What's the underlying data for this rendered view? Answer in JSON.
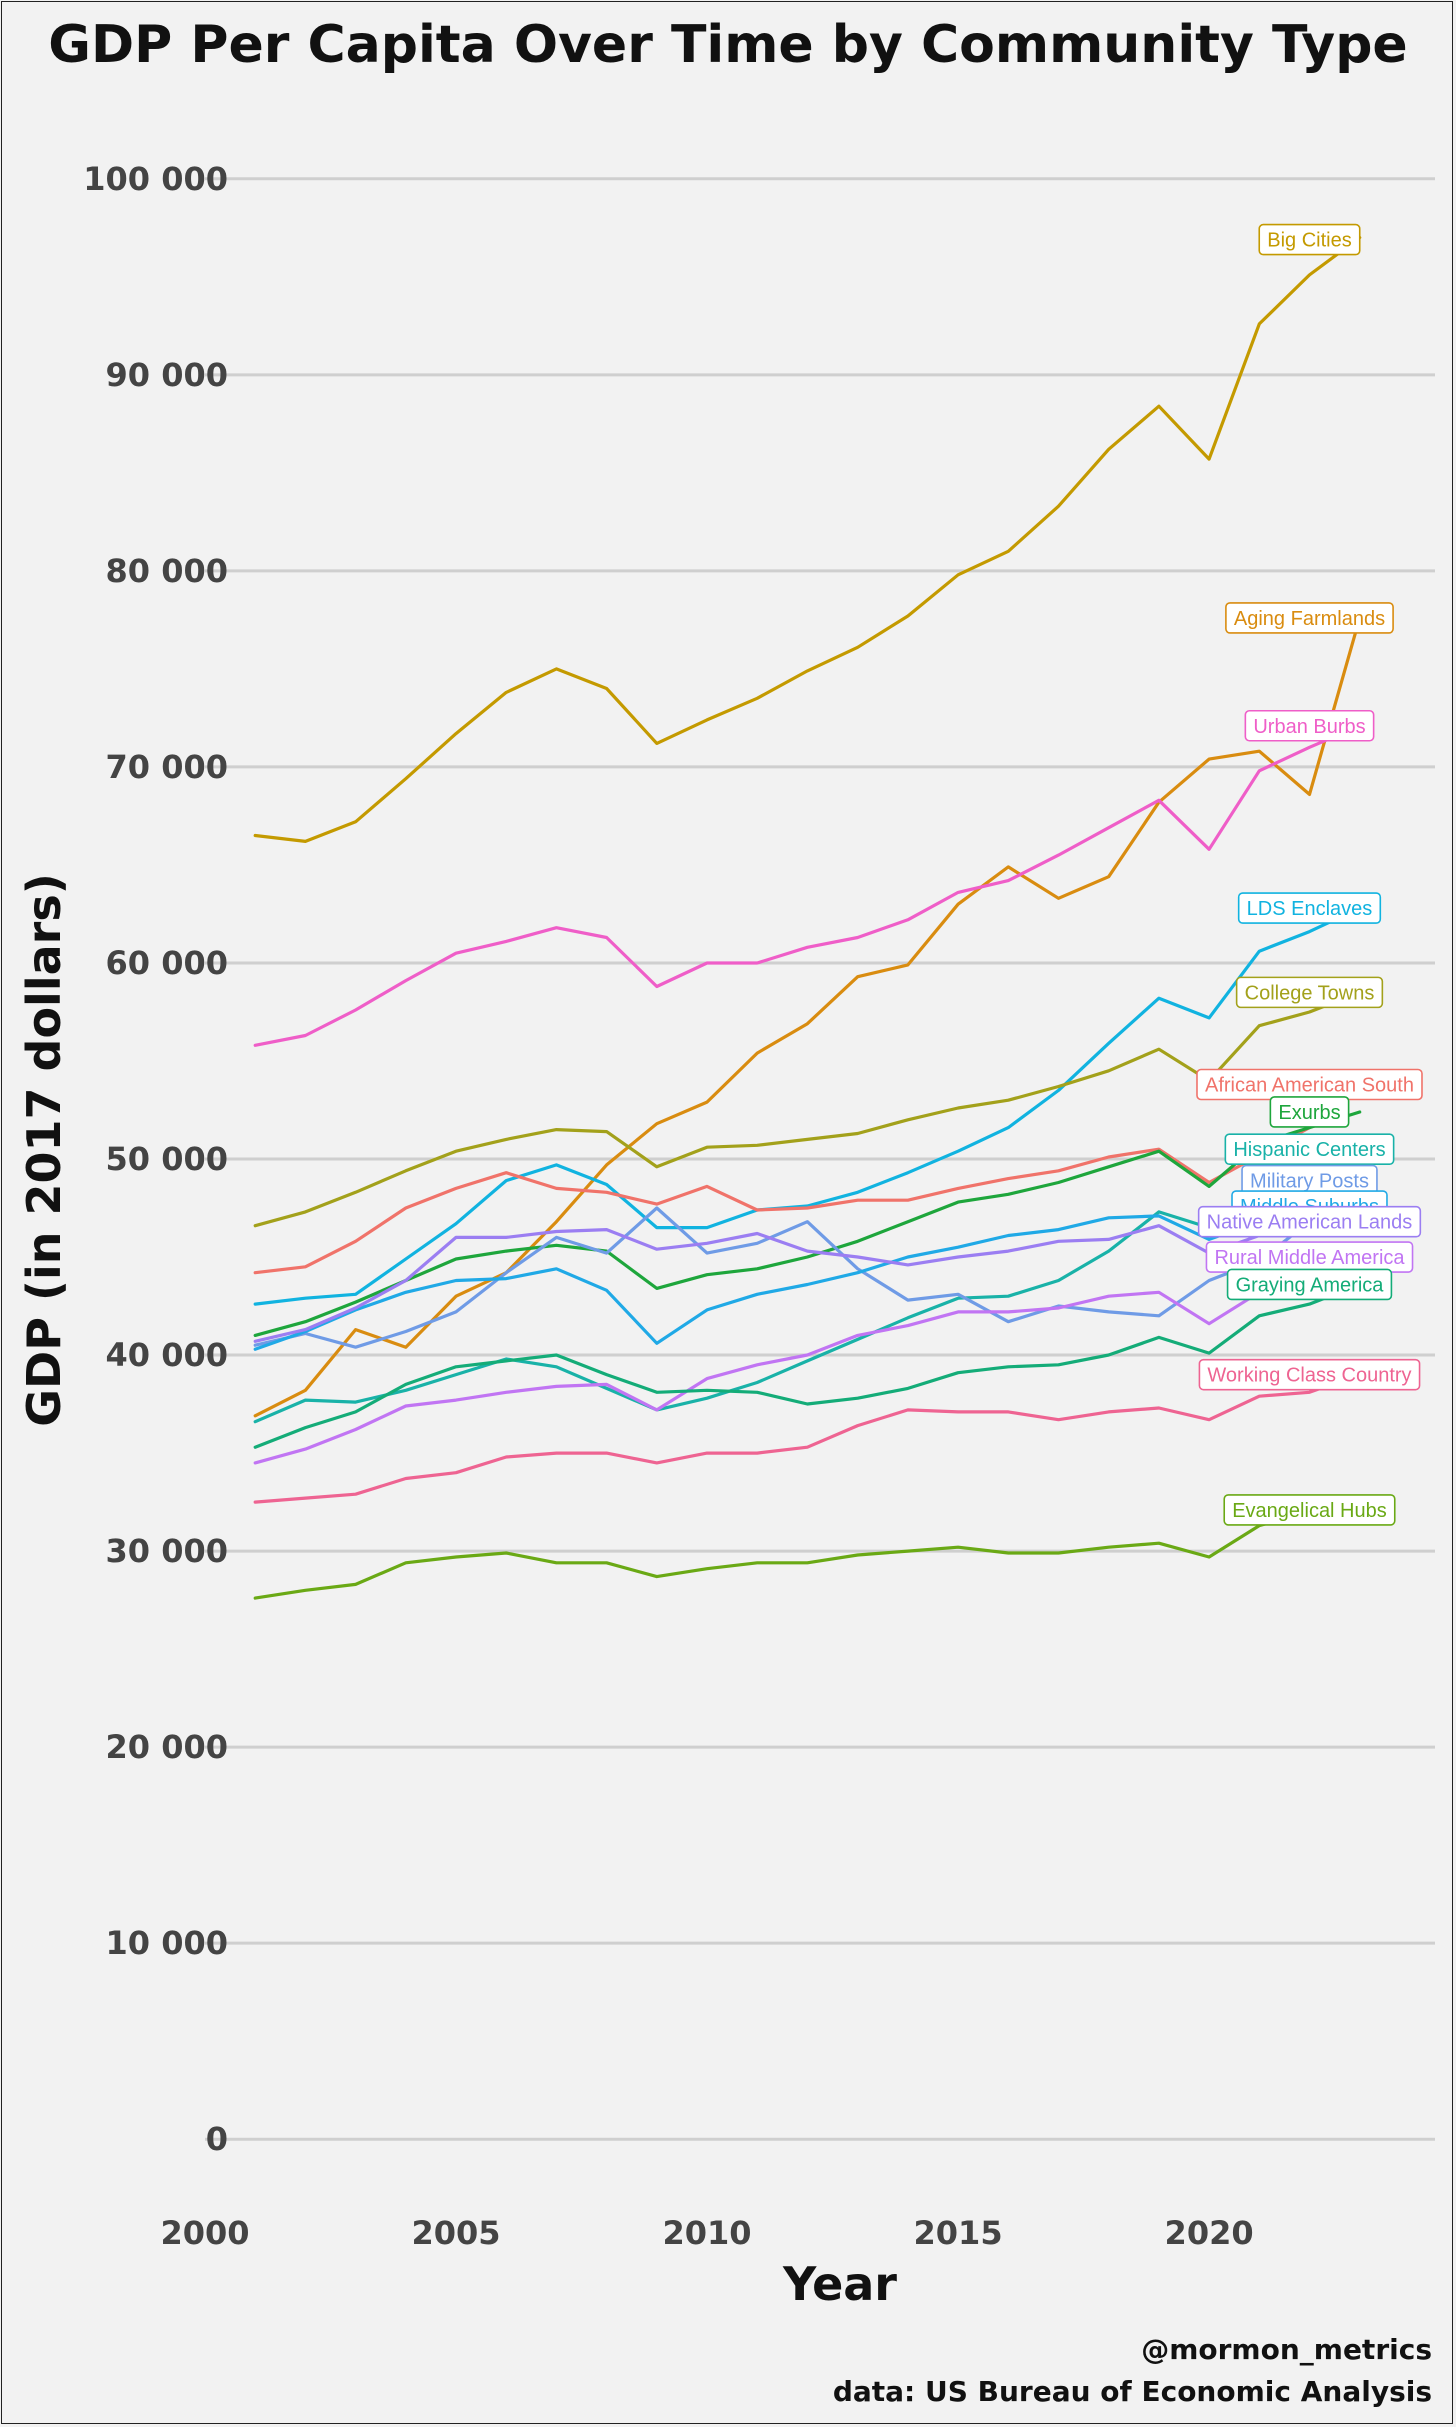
{
  "chart_data": {
    "type": "line",
    "title": "GDP Per Capita Over Time by Community Type",
    "xlabel": "Year",
    "ylabel": "GDP (in 2017 dollars)",
    "xlim": [
      2000,
      2024.5
    ],
    "ylim": [
      -3000,
      103000
    ],
    "x_ticks": [
      2000,
      2005,
      2010,
      2015,
      2020
    ],
    "x_tick_labels": [
      "2000",
      "2005",
      "2010",
      "2015",
      "2020"
    ],
    "y_ticks": [
      0,
      10000,
      20000,
      30000,
      40000,
      50000,
      60000,
      70000,
      80000,
      90000,
      100000
    ],
    "y_tick_labels": [
      "0",
      "10 000",
      "20 000",
      "30 000",
      "40 000",
      "50 000",
      "60 000",
      "70 000",
      "80 000",
      "90 000",
      "100 000"
    ],
    "grid": true,
    "legend": "direct labels at line ends",
    "x": [
      2001,
      2002,
      2003,
      2004,
      2005,
      2006,
      2007,
      2008,
      2009,
      2010,
      2011,
      2012,
      2013,
      2014,
      2015,
      2016,
      2017,
      2018,
      2019,
      2020,
      2021,
      2022,
      2023
    ],
    "series": [
      {
        "name": "Big Cities",
        "color": "#c49a00",
        "values": [
          66500,
          66200,
          67200,
          69400,
          71700,
          73800,
          75000,
          74000,
          71200,
          72400,
          73500,
          74900,
          76100,
          77700,
          79800,
          81000,
          83300,
          86200,
          88400,
          85700,
          92600,
          95100,
          97000
        ],
        "label_y": 96900
      },
      {
        "name": "Aging Farmlands",
        "color": "#d98c10",
        "values": [
          36900,
          38200,
          41300,
          40400,
          43000,
          44200,
          46800,
          49700,
          51800,
          52900,
          55400,
          56900,
          59300,
          59900,
          63000,
          64900,
          63300,
          64400,
          68200,
          70400,
          70800,
          68600,
          77600
        ],
        "label_y": 77600
      },
      {
        "name": "Urban Burbs",
        "color": "#ef5ec8",
        "values": [
          55800,
          56300,
          57600,
          59100,
          60500,
          61100,
          61800,
          61300,
          58800,
          60000,
          60000,
          60800,
          61300,
          62200,
          63600,
          64200,
          65500,
          66900,
          68300,
          65800,
          69800,
          71000,
          72100
        ],
        "label_y": 72100
      },
      {
        "name": "LDS Enclaves",
        "color": "#11b3e0",
        "values": [
          42600,
          42900,
          43100,
          44900,
          46700,
          48900,
          49700,
          48700,
          46500,
          46500,
          47400,
          47600,
          48300,
          49300,
          50400,
          51600,
          53500,
          55900,
          58200,
          57200,
          60600,
          61600,
          62800
        ],
        "label_y": 62800
      },
      {
        "name": "College Towns",
        "color": "#a3a11b",
        "values": [
          46600,
          47300,
          48300,
          49400,
          50400,
          51000,
          51500,
          51400,
          49600,
          50600,
          50700,
          51000,
          51300,
          52000,
          52600,
          53000,
          53700,
          54500,
          55600,
          54000,
          56800,
          57500,
          58500
        ],
        "label_y": 58500
      },
      {
        "name": "African American South",
        "color": "#f0736a",
        "values": [
          44200,
          44500,
          45800,
          47500,
          48500,
          49300,
          48500,
          48300,
          47700,
          48600,
          47400,
          47500,
          47900,
          47900,
          48500,
          49000,
          49400,
          50100,
          50500,
          48800,
          50200,
          51600,
          53800
        ],
        "label_y": 53800
      },
      {
        "name": "Exurbs",
        "color": "#1ea63c",
        "values": [
          41000,
          41700,
          42700,
          43800,
          44900,
          45300,
          45600,
          45300,
          43400,
          44100,
          44400,
          45000,
          45800,
          46800,
          47800,
          48200,
          48800,
          49600,
          50400,
          48600,
          50800,
          51600,
          52400
        ],
        "label_y": 52400
      },
      {
        "name": "Hispanic Centers",
        "color": "#19b2a8",
        "values": [
          36600,
          37700,
          37600,
          38200,
          39000,
          39800,
          39400,
          38300,
          37200,
          37800,
          38600,
          39700,
          40800,
          41900,
          42900,
          43000,
          43800,
          45300,
          47300,
          46500,
          48000,
          49500,
          50500
        ],
        "label_y": 50500
      },
      {
        "name": "Military Posts",
        "color": "#6f9be6",
        "values": [
          40500,
          41100,
          40400,
          41200,
          42200,
          44200,
          46000,
          45200,
          47500,
          45200,
          45700,
          46800,
          44400,
          42800,
          43100,
          41700,
          42500,
          42200,
          42000,
          43800,
          44800,
          46800,
          48900
        ],
        "label_y": 48900
      },
      {
        "name": "Middle Suburbs",
        "color": "#20a9e6",
        "values": [
          40300,
          41200,
          42300,
          43200,
          43800,
          43900,
          44400,
          43300,
          40600,
          42300,
          43100,
          43600,
          44200,
          45000,
          45500,
          46100,
          46400,
          47000,
          47100,
          45900,
          46800,
          47400,
          47600
        ],
        "label_y": 47600
      },
      {
        "name": "Native American Lands",
        "color": "#9b7ef2",
        "values": [
          40700,
          41300,
          42400,
          43800,
          46000,
          46000,
          46300,
          46400,
          45400,
          45700,
          46200,
          45300,
          45000,
          44600,
          45000,
          45300,
          45800,
          45900,
          46600,
          45200,
          46100,
          46500,
          46800
        ],
        "label_y": 46800
      },
      {
        "name": "Rural Middle America",
        "color": "#c175f3",
        "values": [
          34500,
          35200,
          36200,
          37400,
          37700,
          38100,
          38400,
          38500,
          37200,
          38800,
          39500,
          40000,
          41000,
          41500,
          42200,
          42200,
          42400,
          43000,
          43200,
          41600,
          43200,
          44400,
          45000
        ],
        "label_y": 45000
      },
      {
        "name": "Graying America",
        "color": "#14ac78",
        "values": [
          35300,
          36300,
          37100,
          38500,
          39400,
          39700,
          40000,
          39000,
          38100,
          38200,
          38100,
          37500,
          37800,
          38300,
          39100,
          39400,
          39500,
          40000,
          40900,
          40100,
          42000,
          42600,
          43600
        ],
        "label_y": 43600
      },
      {
        "name": "Working Class Country",
        "color": "#ee6492",
        "values": [
          32500,
          32700,
          32900,
          33700,
          34000,
          34800,
          35000,
          35000,
          34500,
          35000,
          35000,
          35300,
          36400,
          37200,
          37100,
          37100,
          36700,
          37100,
          37300,
          36700,
          37900,
          38100,
          39000
        ],
        "label_y": 39000
      },
      {
        "name": "Evangelical Hubs",
        "color": "#6aa915",
        "values": [
          27600,
          28000,
          28300,
          29400,
          29700,
          29900,
          29400,
          29400,
          28700,
          29100,
          29400,
          29400,
          29800,
          30000,
          30200,
          29900,
          29900,
          30200,
          30400,
          29700,
          31300,
          32000,
          32100
        ],
        "label_y": 32100
      }
    ]
  },
  "caption": {
    "handle": "@mormon_metrics",
    "source": "data: US Bureau of Economic Analysis"
  }
}
